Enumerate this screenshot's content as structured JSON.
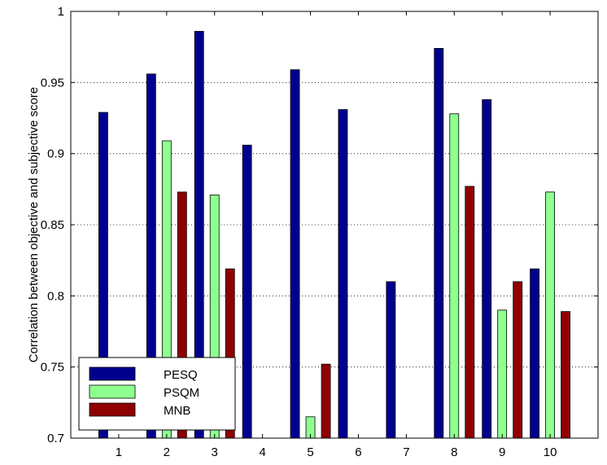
{
  "chart_data": {
    "type": "bar",
    "title": "",
    "xlabel": "",
    "ylabel": "Correlation between objective and subjective score",
    "categories": [
      "1",
      "2",
      "3",
      "4",
      "5",
      "6",
      "7",
      "8",
      "9",
      "10"
    ],
    "ylim": [
      0.7,
      1
    ],
    "yticks": [
      "0.7",
      "0.75",
      "0.8",
      "0.85",
      "0.9",
      "0.95",
      "1"
    ],
    "grid": "horizontal dotted",
    "legend_position": "bottom-left",
    "series": [
      {
        "name": "PESQ",
        "color": "#00008f",
        "values": [
          0.929,
          0.956,
          0.986,
          0.906,
          0.959,
          0.931,
          0.81,
          0.974,
          0.938,
          0.819
        ]
      },
      {
        "name": "PSQM",
        "color": "#8fff8f",
        "values": [
          null,
          0.909,
          0.871,
          null,
          0.715,
          null,
          null,
          0.928,
          0.79,
          0.873
        ]
      },
      {
        "name": "MNB",
        "color": "#8f0000",
        "values": [
          null,
          0.873,
          0.819,
          null,
          0.752,
          null,
          null,
          0.877,
          0.81,
          0.789
        ]
      }
    ]
  }
}
